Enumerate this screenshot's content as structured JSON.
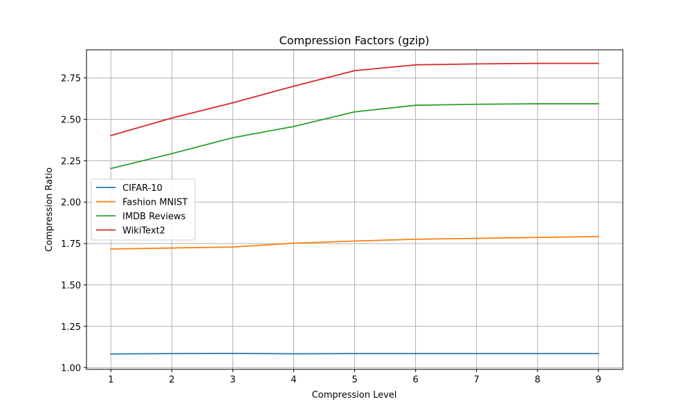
{
  "chart_data": {
    "type": "line",
    "title": "Compression Factors (gzip)",
    "xlabel": "Compression Level",
    "ylabel": "Compression Ratio",
    "x": [
      1,
      2,
      3,
      4,
      5,
      6,
      7,
      8,
      9
    ],
    "xlim": [
      0.6,
      9.4
    ],
    "ylim": [
      0.99,
      2.92
    ],
    "xticks": [
      1,
      2,
      3,
      4,
      5,
      6,
      7,
      8,
      9
    ],
    "yticks": [
      1.0,
      1.25,
      1.5,
      1.75,
      2.0,
      2.25,
      2.5,
      2.75
    ],
    "grid": true,
    "legend_position": "center-left",
    "series": [
      {
        "name": "CIFAR-10",
        "color": "#1f77b4",
        "values": [
          1.083,
          1.085,
          1.086,
          1.084,
          1.085,
          1.085,
          1.085,
          1.085,
          1.085
        ]
      },
      {
        "name": "Fashion MNIST",
        "color": "#ff7f0e",
        "values": [
          1.717,
          1.723,
          1.729,
          1.752,
          1.765,
          1.776,
          1.781,
          1.787,
          1.792
        ]
      },
      {
        "name": "IMDB Reviews",
        "color": "#2ca02c",
        "values": [
          2.203,
          2.293,
          2.389,
          2.457,
          2.545,
          2.585,
          2.591,
          2.594,
          2.594
        ]
      },
      {
        "name": "WikiText2",
        "color": "#d62728",
        "values": [
          2.402,
          2.508,
          2.6,
          2.7,
          2.794,
          2.829,
          2.835,
          2.838,
          2.838
        ]
      }
    ]
  }
}
